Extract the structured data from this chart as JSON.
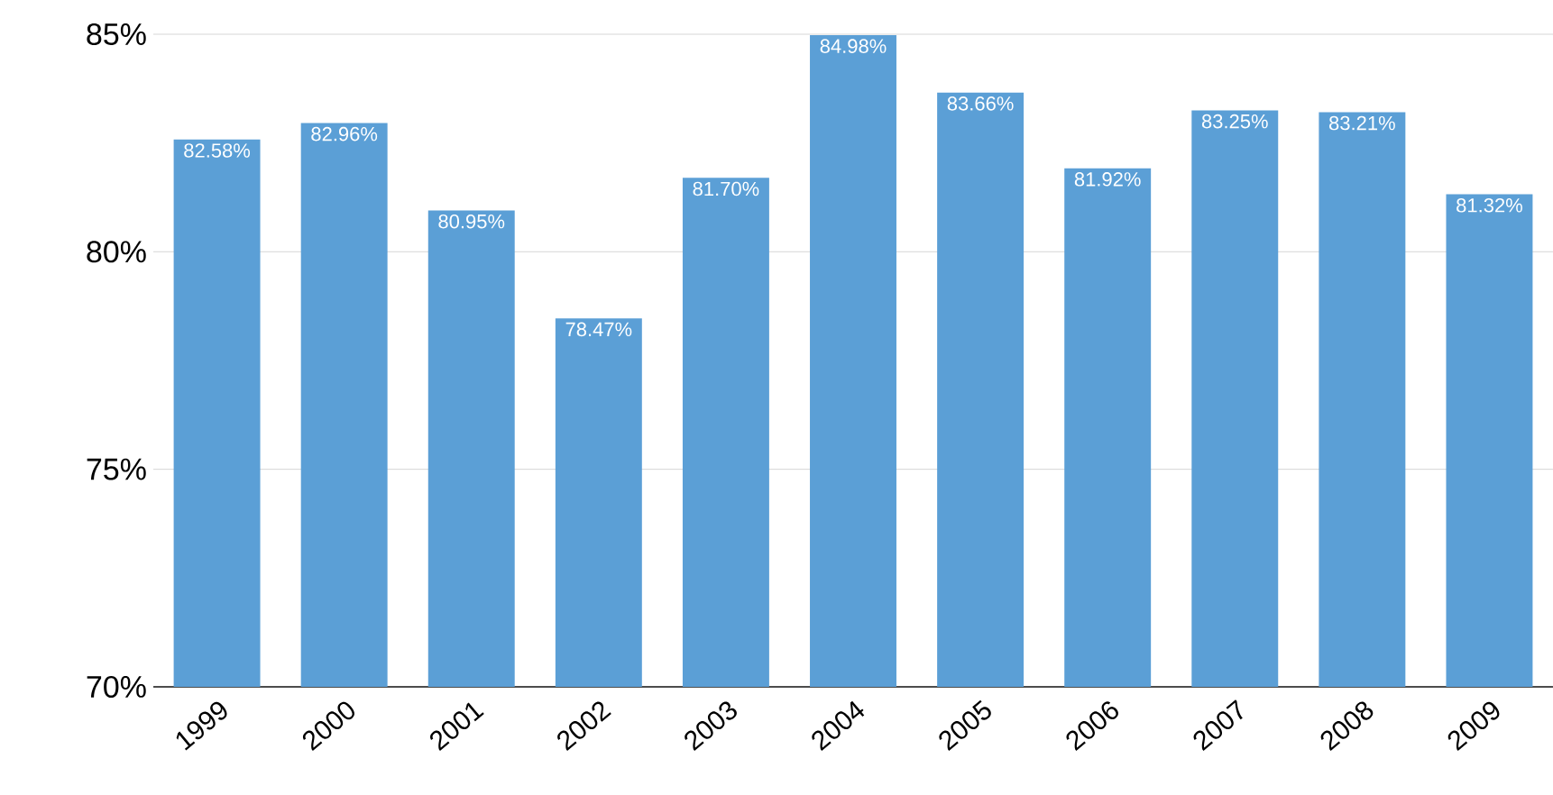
{
  "chart_data": {
    "type": "bar",
    "categories": [
      "1999",
      "2000",
      "2001",
      "2002",
      "2003",
      "2004",
      "2005",
      "2006",
      "2007",
      "2008",
      "2009"
    ],
    "values": [
      82.58,
      82.96,
      80.95,
      78.47,
      81.7,
      84.98,
      83.66,
      81.92,
      83.25,
      83.21,
      81.32
    ],
    "value_labels": [
      "82.58%",
      "82.96%",
      "80.95%",
      "78.47%",
      "81.70%",
      "84.98%",
      "83.66%",
      "81.92%",
      "83.25%",
      "83.21%",
      "81.32%"
    ],
    "color": "#5b9fd6",
    "ylim": [
      70,
      85
    ],
    "yticks": [
      {
        "value": 70,
        "label": "70%"
      },
      {
        "value": 75,
        "label": "75%"
      },
      {
        "value": 80,
        "label": "80%"
      },
      {
        "value": 85,
        "label": "85%"
      }
    ],
    "grid": "y"
  }
}
